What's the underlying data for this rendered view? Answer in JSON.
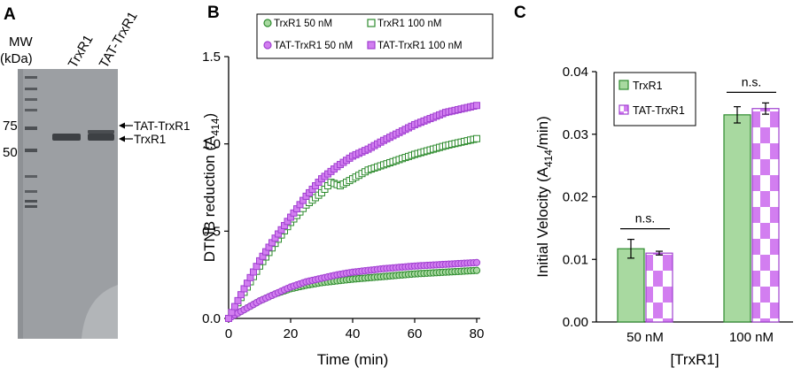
{
  "panels": {
    "a": {
      "letter": "A",
      "mw_label_line1": "MW",
      "mw_label_line2": "(kDa)",
      "lane_labels": [
        "TrxR1",
        "TAT-TrxR1"
      ],
      "marker_labels": [
        "75",
        "50"
      ],
      "arrow_labels": [
        "TAT-TrxR1",
        "TrxR1"
      ]
    },
    "b": {
      "letter": "B"
    },
    "c": {
      "letter": "C"
    }
  },
  "colors": {
    "trxr1_green": "#2e8b2e",
    "trxr1_fill": "#a8d9a0",
    "tat_purple": "#a040d0",
    "tat_fill": "#d27ef0",
    "gel_bg": "#9c9fa3"
  },
  "chart_data": [
    {
      "type": "scatter",
      "title": "",
      "xlabel": "Time (min)",
      "ylabel": "DTNB reduction (A",
      "ylabel_sub": "414",
      "ylabel_end": ")",
      "xlim": [
        0,
        80
      ],
      "ylim": [
        0,
        1.5
      ],
      "x_ticks": [
        "0",
        "20",
        "40",
        "60",
        "80"
      ],
      "y_ticks": [
        "0.0",
        "0.5",
        "1.0",
        "1.5"
      ],
      "legend": [
        "TrxR1 50 nM",
        "TrxR1 100 nM",
        "TAT-TrxR1 50 nM",
        "TAT-TrxR1 100 nM"
      ],
      "legend_position": "top",
      "series": [
        {
          "name": "TrxR1 50 nM",
          "marker": "circle",
          "color_key": "green",
          "points": [
            [
              0,
              0
            ],
            [
              5,
              0.05
            ],
            [
              10,
              0.1
            ],
            [
              15,
              0.14
            ],
            [
              20,
              0.17
            ],
            [
              25,
              0.19
            ],
            [
              30,
              0.205
            ],
            [
              35,
              0.215
            ],
            [
              40,
              0.225
            ],
            [
              50,
              0.24
            ],
            [
              60,
              0.255
            ],
            [
              70,
              0.265
            ],
            [
              80,
              0.275
            ]
          ]
        },
        {
          "name": "TrxR1 100 nM",
          "marker": "square",
          "color_key": "green",
          "points": [
            [
              0,
              0
            ],
            [
              5,
              0.15
            ],
            [
              10,
              0.3
            ],
            [
              15,
              0.43
            ],
            [
              20,
              0.55
            ],
            [
              25,
              0.65
            ],
            [
              30,
              0.72
            ],
            [
              33,
              0.78
            ],
            [
              36,
              0.76
            ],
            [
              40,
              0.8
            ],
            [
              45,
              0.85
            ],
            [
              50,
              0.88
            ],
            [
              60,
              0.94
            ],
            [
              70,
              0.99
            ],
            [
              80,
              1.03
            ]
          ]
        },
        {
          "name": "TAT-TrxR1 50 nM",
          "marker": "circle",
          "color_key": "purple",
          "points": [
            [
              0,
              0
            ],
            [
              5,
              0.05
            ],
            [
              10,
              0.1
            ],
            [
              15,
              0.14
            ],
            [
              20,
              0.18
            ],
            [
              25,
              0.21
            ],
            [
              30,
              0.23
            ],
            [
              35,
              0.25
            ],
            [
              40,
              0.265
            ],
            [
              50,
              0.285
            ],
            [
              60,
              0.3
            ],
            [
              70,
              0.31
            ],
            [
              80,
              0.32
            ]
          ]
        },
        {
          "name": "TAT-TrxR1 100 nM",
          "marker": "square",
          "color_key": "purple",
          "points": [
            [
              0,
              0
            ],
            [
              5,
              0.17
            ],
            [
              10,
              0.33
            ],
            [
              15,
              0.46
            ],
            [
              20,
              0.58
            ],
            [
              25,
              0.7
            ],
            [
              30,
              0.8
            ],
            [
              35,
              0.87
            ],
            [
              40,
              0.93
            ],
            [
              45,
              0.97
            ],
            [
              50,
              1.02
            ],
            [
              60,
              1.11
            ],
            [
              70,
              1.18
            ],
            [
              80,
              1.22
            ]
          ]
        }
      ]
    },
    {
      "type": "bar",
      "title": "",
      "xlabel": "[TrxR1]",
      "ylabel": "Initial Velocity (A",
      "ylabel_sub": "414",
      "ylabel_end": "/min)",
      "ylim": [
        0,
        0.04
      ],
      "y_ticks": [
        "0.00",
        "0.01",
        "0.02",
        "0.03",
        "0.04"
      ],
      "categories": [
        "50 nM",
        "100 nM"
      ],
      "legend": [
        "TrxR1",
        "TAT-TrxR1"
      ],
      "legend_position": "top-left",
      "series": [
        {
          "name": "TrxR1",
          "values": [
            0.0117,
            0.0331
          ],
          "errors": [
            0.0015,
            0.0013
          ]
        },
        {
          "name": "TAT-TrxR1",
          "values": [
            0.011,
            0.0341
          ],
          "errors": [
            0.0003,
            0.0009
          ]
        }
      ],
      "annotations": [
        "n.s.",
        "n.s."
      ]
    }
  ]
}
